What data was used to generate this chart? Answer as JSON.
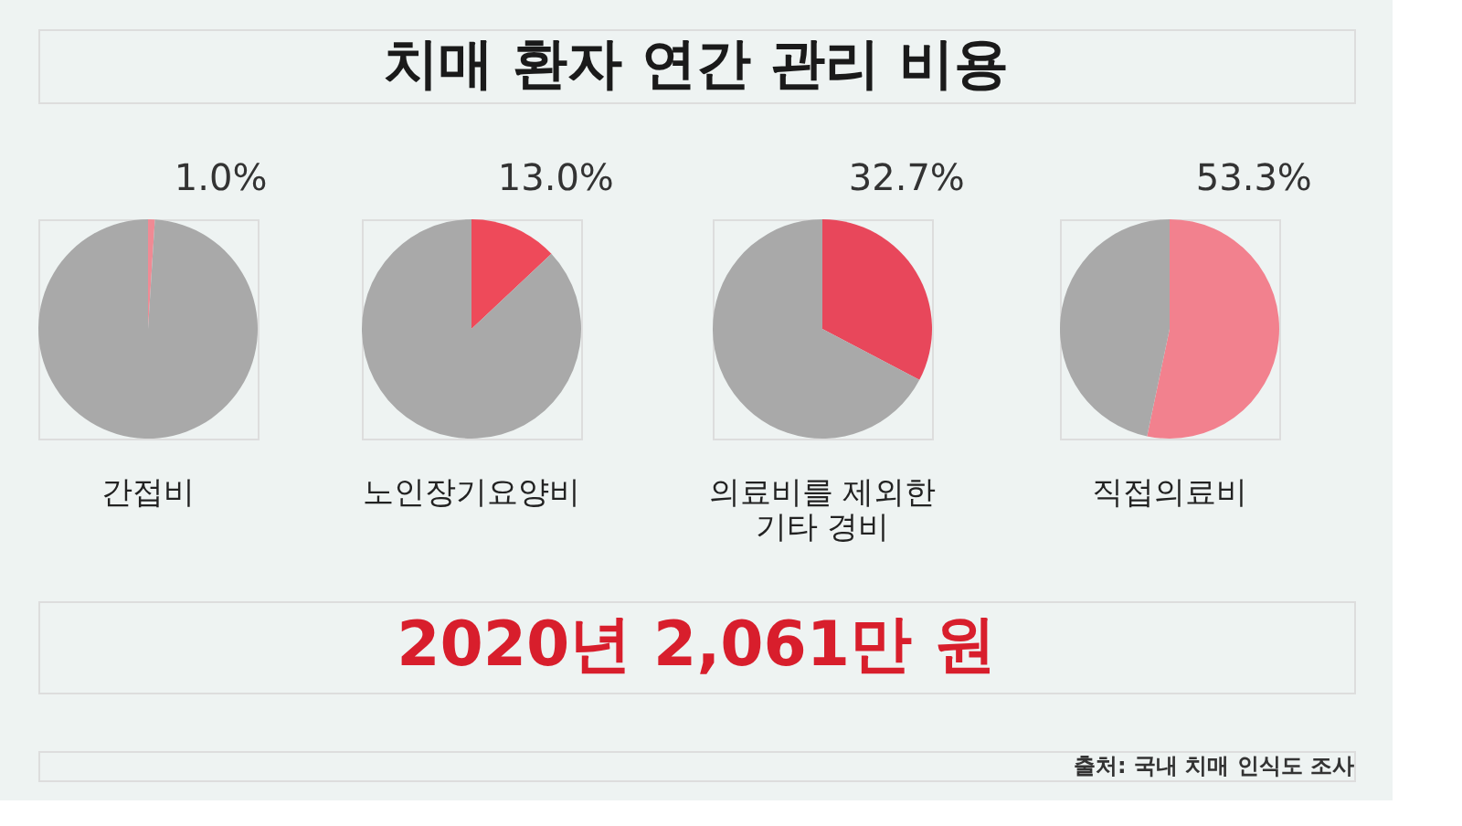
{
  "chart_data": [
    {
      "type": "other",
      "title": "치매 환자 연간 관리 비용",
      "annotations": [
        "2020년 2,061만 원",
        "출처: 국내 치매 인식도 조사"
      ]
    },
    {
      "type": "pie",
      "title": "간접비",
      "categories": [
        null,
        null
      ],
      "values": [
        1.0,
        99.0
      ],
      "colors": [
        "#f08a94",
        "#a9a9a9"
      ],
      "value_labels": [
        "1.0%",
        null
      ]
    },
    {
      "type": "pie",
      "title": "노인장기요양비",
      "categories": [
        null,
        null
      ],
      "values": [
        13.0,
        87.0
      ],
      "colors": [
        "#ee4a5a",
        "#a9a9a9"
      ],
      "value_labels": [
        "13.0%",
        null
      ]
    },
    {
      "type": "pie",
      "title": "의료비를 제외한\n기타 경비",
      "categories": [
        null,
        null
      ],
      "values": [
        32.7,
        67.3
      ],
      "colors": [
        "#e8475b",
        "#a9a9a9"
      ],
      "value_labels": [
        "32.7%",
        null
      ]
    },
    {
      "type": "pie",
      "title": "직접의료비",
      "categories": [
        null,
        null
      ],
      "values": [
        53.3,
        46.7
      ],
      "colors": [
        "#f2818e",
        "#a9a9a9"
      ],
      "value_labels": [
        "53.3%",
        null
      ]
    }
  ]
}
